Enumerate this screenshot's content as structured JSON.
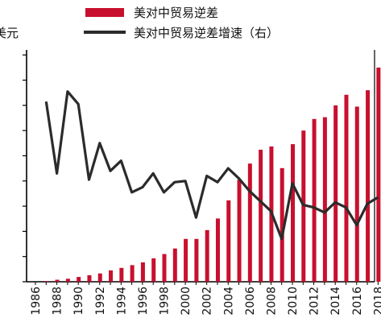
{
  "chart_data": {
    "type": "bar",
    "title": "",
    "unit_label": "美元",
    "xlabel": "",
    "ylabel": "",
    "grid": false,
    "legend_position": "top",
    "categories": [
      "1986",
      "1987",
      "1988",
      "1989",
      "1990",
      "1991",
      "1992",
      "1993",
      "1994",
      "1995",
      "1996",
      "1997",
      "1998",
      "1999",
      "2000",
      "2001",
      "2002",
      "2003",
      "2004",
      "2005",
      "2006",
      "2007",
      "2008",
      "2009",
      "2010",
      "2011",
      "2012",
      "2013",
      "2014",
      "2015",
      "2016",
      "2017",
      "2018"
    ],
    "x_tick_labels": [
      "1986",
      "1988",
      "1990",
      "1992",
      "1994",
      "1996",
      "1998",
      "2000",
      "2002",
      "2004",
      "2006",
      "2008",
      "2010",
      "2012",
      "2014",
      "2016",
      "2018"
    ],
    "ylim_left": [
      0,
      9.2
    ],
    "ylim_right": [
      0,
      9.2
    ],
    "series": [
      {
        "name": "美对中贸易逆差",
        "kind": "bar",
        "axis": "left",
        "color": "#c8102e",
        "values": [
          0,
          0.03,
          0.08,
          0.12,
          0.19,
          0.26,
          0.33,
          0.45,
          0.55,
          0.66,
          0.77,
          0.93,
          1.1,
          1.32,
          1.7,
          1.7,
          2.05,
          2.51,
          3.23,
          4.05,
          4.69,
          5.24,
          5.37,
          4.51,
          5.46,
          6.0,
          6.46,
          6.53,
          7.0,
          7.42,
          6.95,
          7.6,
          8.5
        ]
      },
      {
        "name": "美对中贸易逆差增速（右）",
        "kind": "line",
        "axis": "right",
        "color": "#2b2b2b",
        "values": [
          null,
          7.15,
          4.3,
          7.55,
          7.05,
          4.05,
          5.5,
          4.4,
          4.8,
          3.55,
          3.75,
          4.3,
          3.55,
          3.95,
          4.0,
          2.55,
          4.2,
          3.95,
          4.5,
          4.1,
          3.6,
          3.2,
          2.8,
          1.7,
          3.9,
          3.05,
          2.95,
          2.75,
          3.15,
          2.95,
          2.25,
          3.1,
          3.35
        ]
      }
    ]
  }
}
